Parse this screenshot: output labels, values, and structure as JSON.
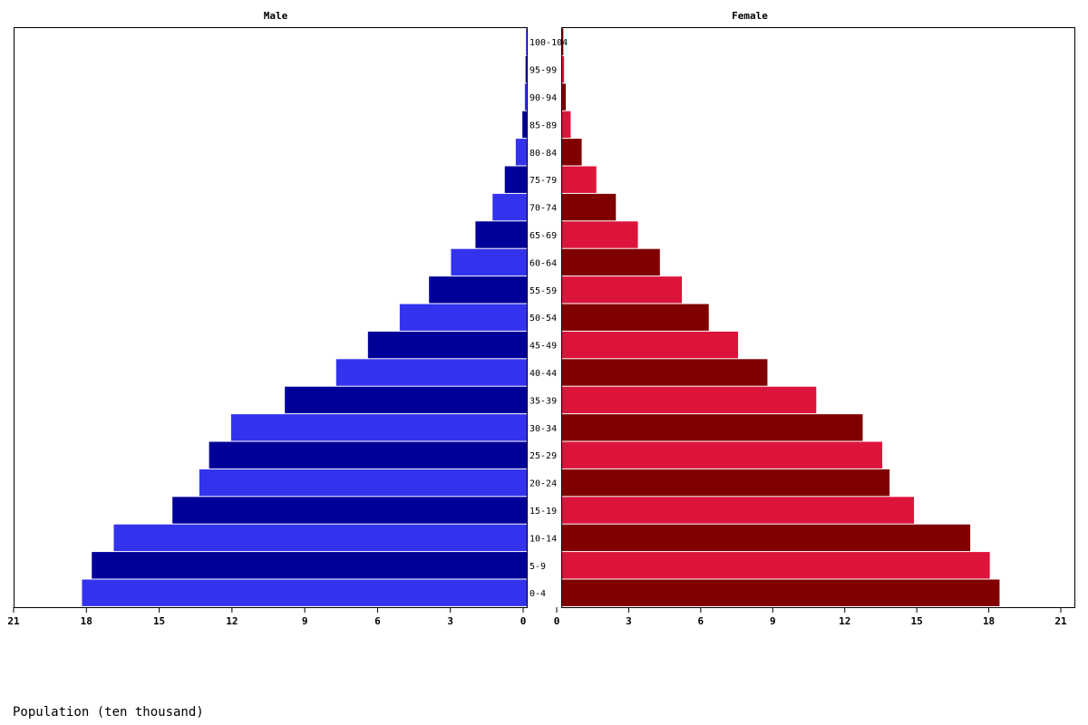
{
  "chart_data": {
    "type": "bar",
    "orientation": "horizontal",
    "layout": "population-pyramid",
    "xlabel": "Population (ten thousand)",
    "panels": {
      "left_title": "Male",
      "right_title": "Female"
    },
    "categories": [
      "0-4",
      "5-9",
      "10-14",
      "15-19",
      "20-24",
      "25-29",
      "30-34",
      "35-39",
      "40-44",
      "45-49",
      "50-54",
      "55-59",
      "60-64",
      "65-69",
      "70-74",
      "75-79",
      "80-84",
      "85-89",
      "90-94",
      "95-99",
      "100-104"
    ],
    "series": [
      {
        "name": "Male",
        "values": [
          18.2,
          17.8,
          16.9,
          14.5,
          13.4,
          13.0,
          12.1,
          9.9,
          7.8,
          6.5,
          5.2,
          4.0,
          3.1,
          2.1,
          1.4,
          0.9,
          0.45,
          0.18,
          0.08,
          0.05,
          0.03
        ],
        "colors": [
          "#3333ee",
          "#000099"
        ]
      },
      {
        "name": "Female",
        "values": [
          17.9,
          17.5,
          16.7,
          14.4,
          13.4,
          13.1,
          12.3,
          10.4,
          8.4,
          7.2,
          6.0,
          4.9,
          4.0,
          3.1,
          2.2,
          1.4,
          0.8,
          0.35,
          0.15,
          0.08,
          0.05
        ],
        "colors": [
          "#800000",
          "#dc143c"
        ]
      }
    ],
    "xlim": [
      0,
      21
    ],
    "xticks": [
      0,
      3,
      6,
      9,
      12,
      15,
      18,
      21
    ],
    "grid": false,
    "legend": "none"
  }
}
